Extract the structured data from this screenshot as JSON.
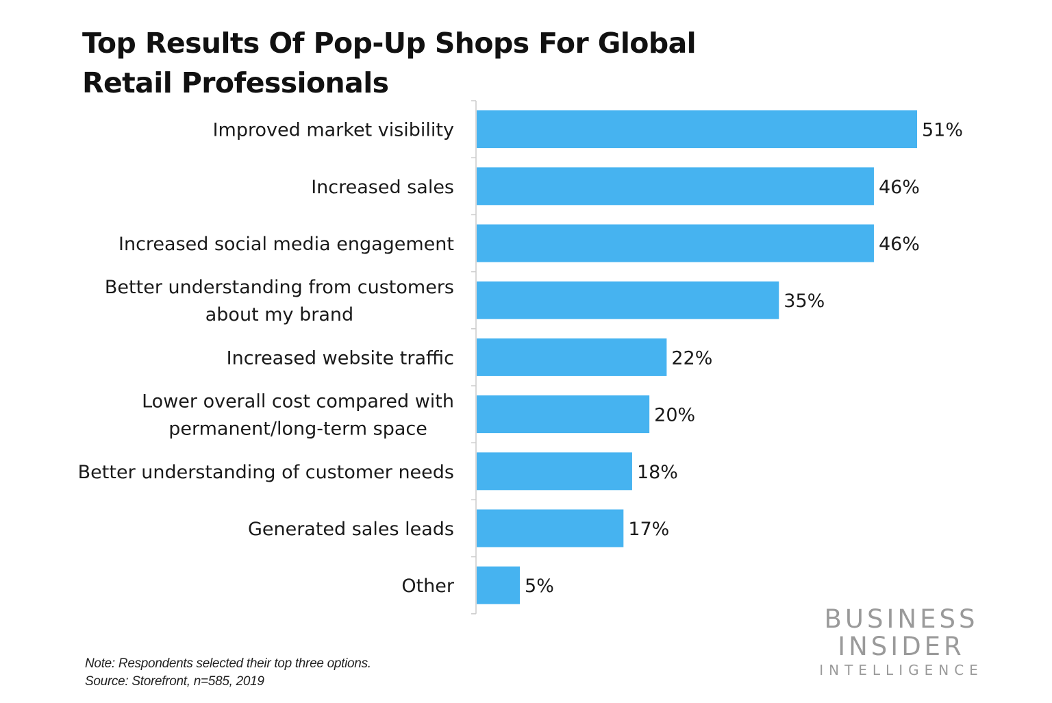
{
  "title": "Top Results Of Pop-Up Shops For Global Retail Professionals",
  "bar_color": "#46b3f0",
  "axis_color": "#cccccc",
  "chart_data": {
    "type": "bar",
    "orientation": "horizontal",
    "title": "Top Results Of Pop-Up Shops For Global Retail Professionals",
    "categories": [
      [
        "Improved market visibility"
      ],
      [
        "Increased sales"
      ],
      [
        "Increased social media engagement"
      ],
      [
        "Better understanding from customers",
        "about my brand"
      ],
      [
        "Increased website traffic"
      ],
      [
        "Lower overall cost compared with",
        "permanent/long-term space"
      ],
      [
        "Better understanding of customer needs"
      ],
      [
        "Generated sales leads"
      ],
      [
        "Other"
      ]
    ],
    "values": [
      51,
      46,
      46,
      35,
      22,
      20,
      18,
      17,
      5
    ],
    "value_labels": [
      "51%",
      "46%",
      "46%",
      "35%",
      "22%",
      "20%",
      "18%",
      "17%",
      "5%"
    ],
    "unit": "%",
    "xlim": [
      0,
      51
    ],
    "grid": false,
    "legend": "none"
  },
  "notes": {
    "note": "Note: Respondents selected their top three options.",
    "source": "Source: Storefront, n=585, 2019"
  },
  "logo": {
    "line1": "BUSINESS",
    "line2": "INSIDER",
    "line3": "INTELLIGENCE"
  }
}
